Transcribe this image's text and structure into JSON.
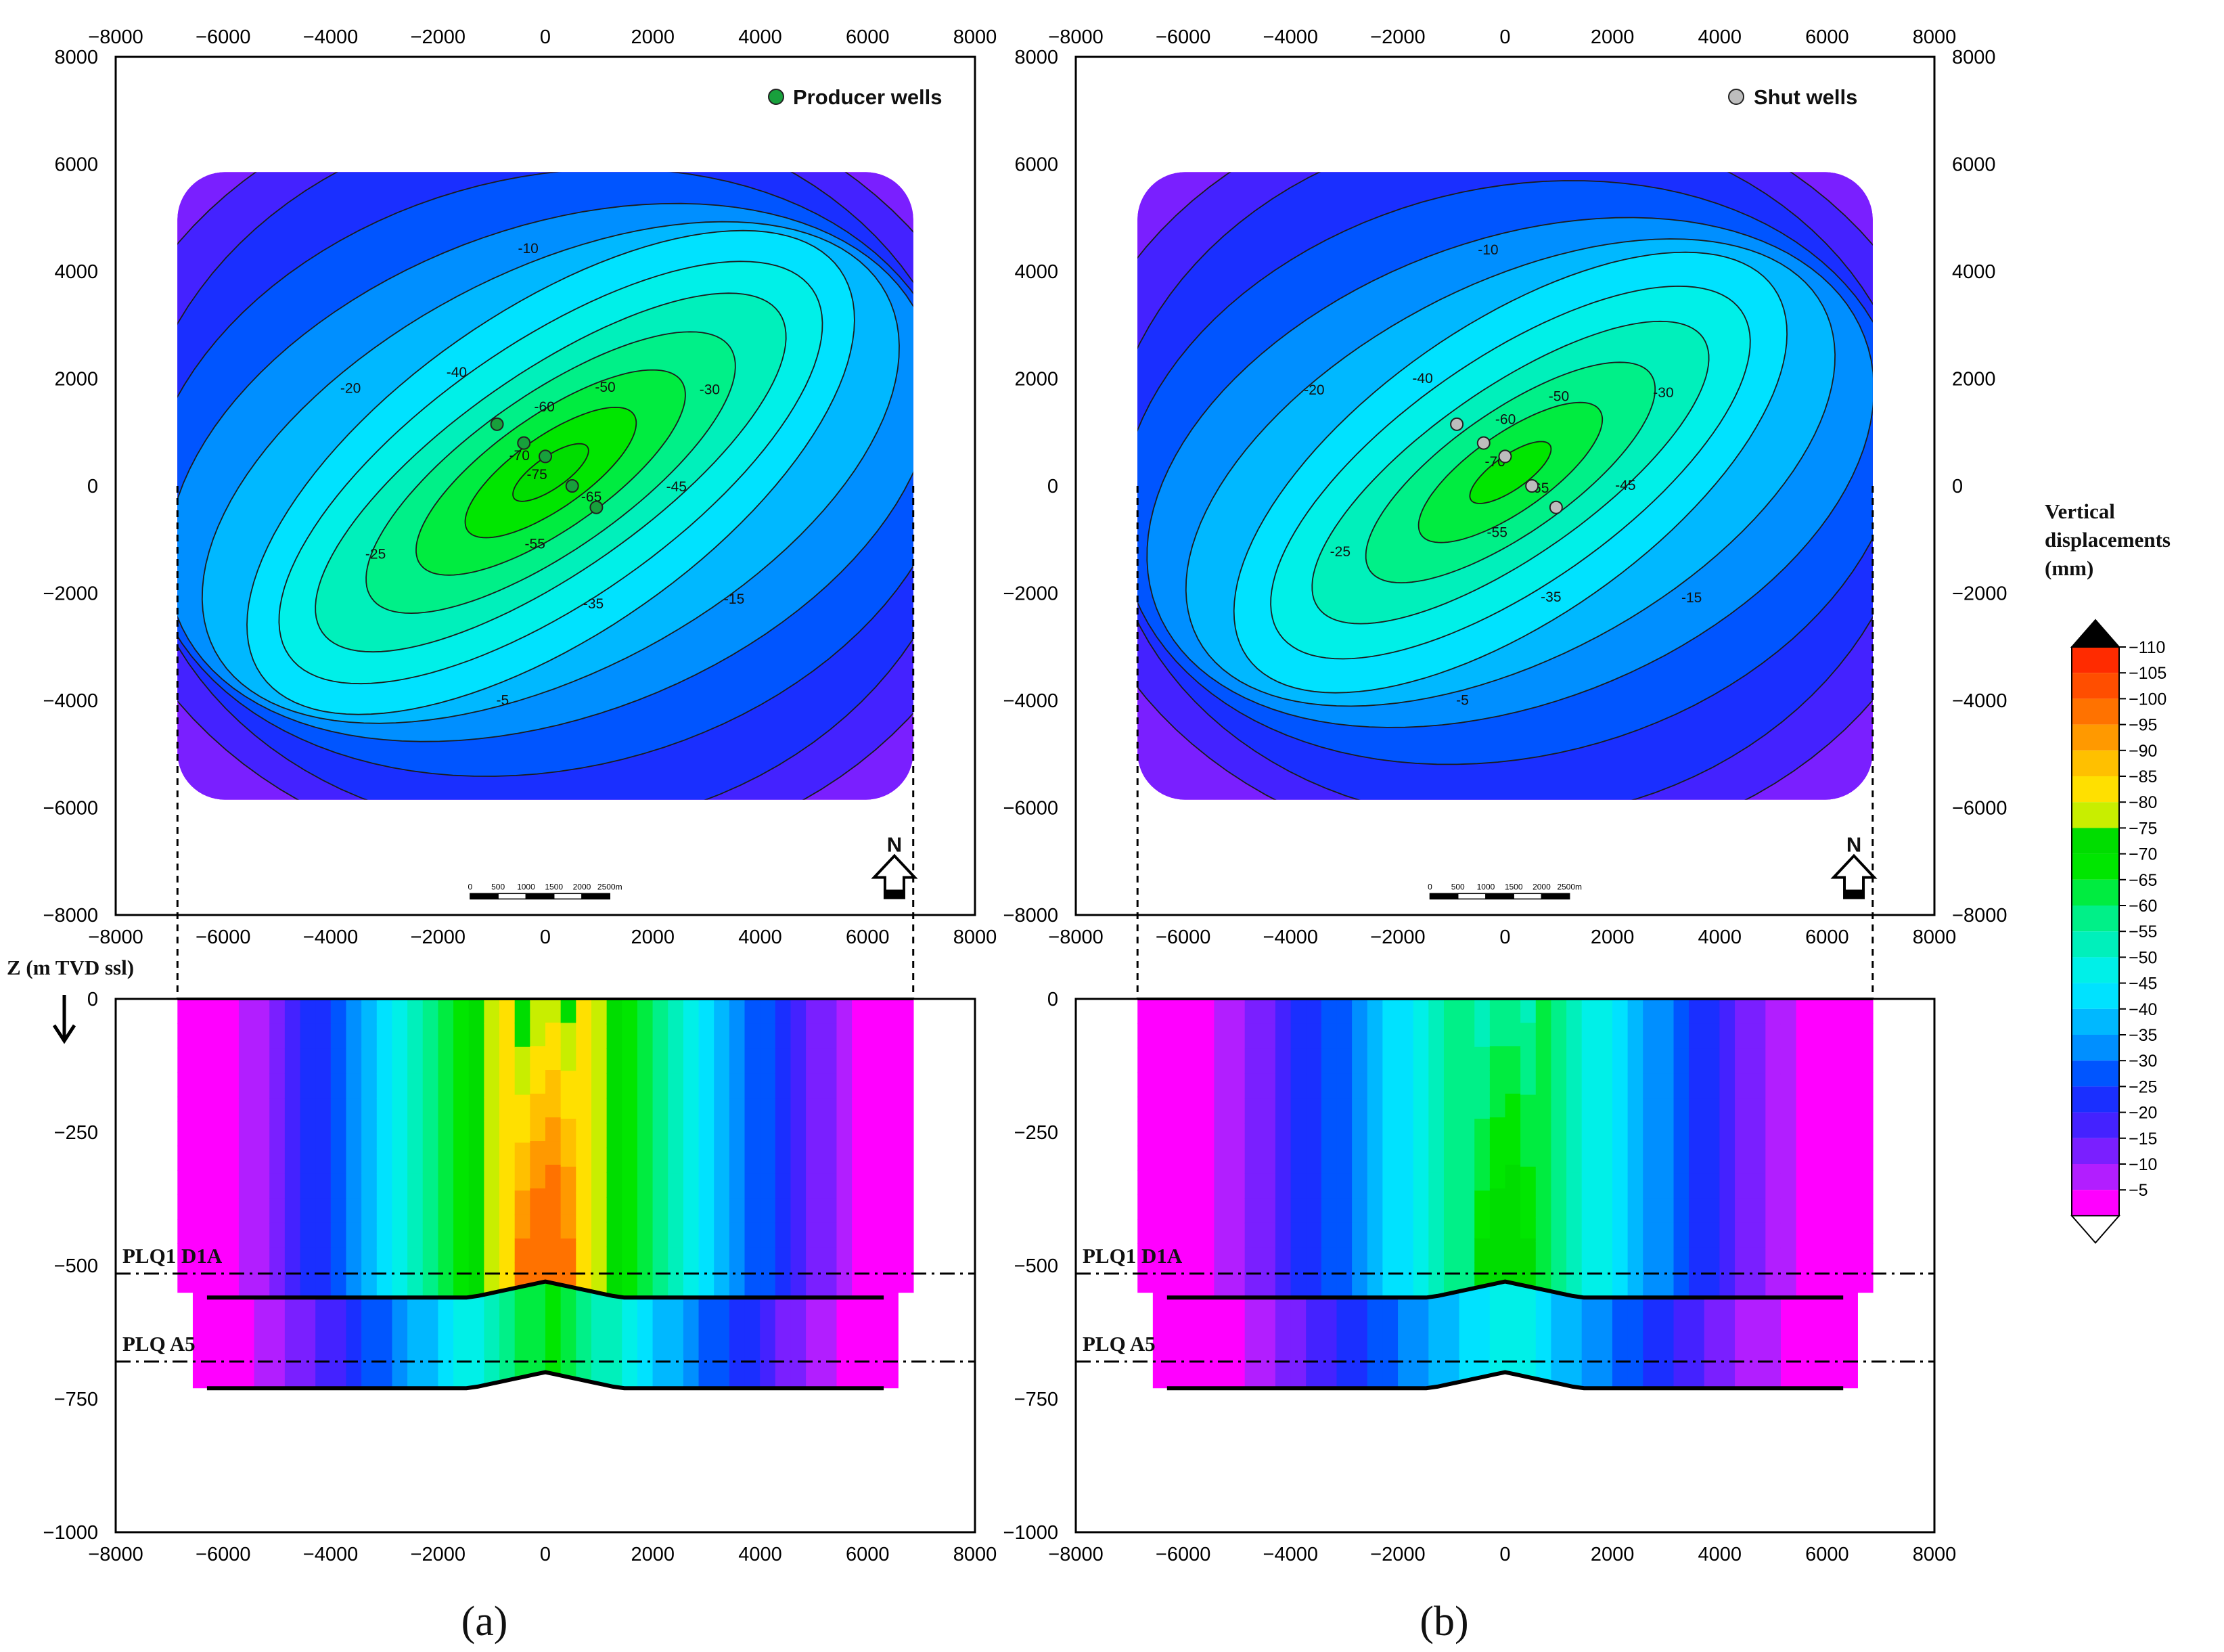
{
  "chart_data": {
    "type": "heatmap",
    "title": "",
    "colorbar": {
      "title": [
        "Vertical",
        "displacements",
        "(mm)"
      ],
      "ticks": [
        -110,
        -105,
        -100,
        -95,
        -90,
        -85,
        -80,
        -75,
        -70,
        -65,
        -60,
        -55,
        -50,
        -45,
        -40,
        -35,
        -30,
        -25,
        -20,
        -15,
        -10,
        -5
      ],
      "colors": [
        "#ff2b00",
        "#ff4e00",
        "#ff7200",
        "#ff9900",
        "#ffc000",
        "#ffe000",
        "#c8ee00",
        "#00dd00",
        "#00e600",
        "#00ec40",
        "#00f088",
        "#00f0bb",
        "#00f0e8",
        "#00e2ff",
        "#00b8ff",
        "#008fff",
        "#0055ff",
        "#1a2fff",
        "#4422ff",
        "#7a1fff",
        "#b21eff",
        "#ff00ff"
      ],
      "above_color": "#000000",
      "below_color": "#ffffff"
    },
    "panels": [
      {
        "label": "a",
        "legend": "Producer wells",
        "well_color": "#18a03c",
        "plan_peak_mm": -75,
        "section_peak_mm": -100,
        "plan_contour_labels": [
          "-5",
          "-10",
          "-15",
          "-20",
          "-25",
          "-30",
          "-35",
          "-40",
          "-45",
          "-50",
          "-55",
          "-60",
          "-65",
          "-70",
          "-75"
        ],
        "wells": [
          {
            "x": -900,
            "y": 1150
          },
          {
            "x": -400,
            "y": 800
          },
          {
            "x": 0,
            "y": 550
          },
          {
            "x": 500,
            "y": 0
          },
          {
            "x": 950,
            "y": -400
          }
        ]
      },
      {
        "label": "b",
        "legend": "Shut wells",
        "well_color": "#bdbdbd",
        "plan_peak_mm": -70,
        "section_peak_mm": -75,
        "plan_contour_labels": [
          "-5",
          "-10",
          "-15",
          "-20",
          "-25",
          "-30",
          "-35",
          "-40",
          "-45",
          "-50",
          "-55",
          "-60",
          "-65",
          "-70"
        ],
        "wells": [
          {
            "x": -900,
            "y": 1150
          },
          {
            "x": -400,
            "y": 800
          },
          {
            "x": 0,
            "y": 550
          },
          {
            "x": 500,
            "y": 0
          },
          {
            "x": 950,
            "y": -400
          }
        ]
      }
    ],
    "plan_axes": {
      "x_ticks": [
        -8000,
        -6000,
        -4000,
        -2000,
        0,
        2000,
        4000,
        6000,
        8000
      ],
      "y_ticks": [
        8000,
        6000,
        4000,
        2000,
        0,
        -2000,
        -4000,
        -6000,
        -8000
      ],
      "xlim": [
        -8000,
        8000
      ],
      "ylim": [
        -8000,
        8000
      ]
    },
    "section_axes": {
      "ylabel": "Z (m TVD ssl)",
      "y_ticks": [
        0,
        -250,
        -500,
        -750,
        -1000
      ],
      "ylim": [
        -1000,
        0
      ],
      "x_ticks": [
        -8000,
        -6000,
        -4000,
        -2000,
        0,
        2000,
        4000,
        6000,
        8000
      ]
    },
    "horizons": [
      {
        "name": "PLQ1 D1A",
        "z": -515
      },
      {
        "name": "PLQ A5",
        "z": -680
      }
    ],
    "scale_bar": {
      "labels": [
        "0",
        "500",
        "1000",
        "1500",
        "2000",
        "2500m"
      ]
    },
    "north_label": "N"
  }
}
